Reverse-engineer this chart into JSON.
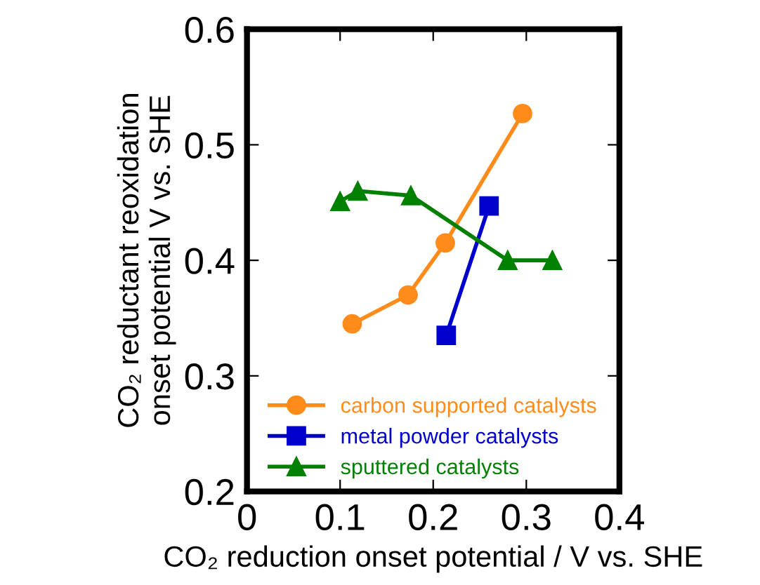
{
  "chart_data": {
    "type": "line",
    "xlabel": "CO₂ reduction onset potential / V vs. SHE",
    "ylabel": "CO₂ reductant reoxidation\nonset potential V vs. SHE",
    "xlim": [
      0,
      0.4
    ],
    "xticks": [
      0,
      0.1,
      0.2,
      0.3,
      0.4
    ],
    "ylim": [
      0.2,
      0.6
    ],
    "yticks": [
      0.2,
      0.3,
      0.4,
      0.5,
      0.6
    ],
    "grid": false,
    "legend": "bottom",
    "series": [
      {
        "name": "carbon supported catalysts",
        "color": "#ff8c1a",
        "marker": "circle",
        "x": [
          0.113,
          0.173,
          0.213,
          0.296
        ],
        "values": [
          0.345,
          0.37,
          0.415,
          0.527
        ]
      },
      {
        "name": "metal powder catalysts",
        "color": "#0000cc",
        "marker": "square",
        "x": [
          0.214,
          0.26
        ],
        "values": [
          0.335,
          0.447
        ]
      },
      {
        "name": "sputtered catalysts",
        "color": "#008000",
        "marker": "triangle",
        "x": [
          0.1,
          0.119,
          0.176,
          0.28,
          0.328
        ],
        "values": [
          0.451,
          0.46,
          0.456,
          0.4,
          0.4
        ]
      }
    ]
  }
}
